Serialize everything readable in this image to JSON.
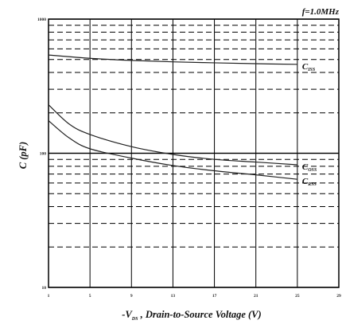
{
  "chart_data": {
    "type": "line",
    "frequency_label": "f=1.0MHz",
    "ylabel": "C (pF)",
    "xlabel": {
      "prefix": "-V",
      "sub": "DS",
      "suffix": " , Drain-to-Source Voltage (V)"
    },
    "xlim": [
      1,
      29
    ],
    "ylim": [
      10,
      1000
    ],
    "yscale": "log",
    "x_ticks": [
      "1",
      "5",
      "9",
      "13",
      "17",
      "21",
      "25",
      "29"
    ],
    "y_ticks": [
      "10",
      "100",
      "1000"
    ],
    "grid": true,
    "series": [
      {
        "name": "C_ISS",
        "label_main": "C",
        "label_sub": "ISS",
        "x": [
          1,
          5,
          9,
          13,
          17,
          21,
          25
        ],
        "values": [
          540,
          510,
          492,
          480,
          472,
          465,
          460
        ]
      },
      {
        "name": "C_OSS",
        "label_main": "C",
        "label_sub": "OSS",
        "x": [
          1,
          3,
          5,
          9,
          13,
          17,
          21,
          25
        ],
        "values": [
          230,
          165,
          138,
          112,
          98,
          90,
          86,
          82
        ]
      },
      {
        "name": "C_RSS",
        "label_main": "C",
        "label_sub": "RSS",
        "x": [
          1,
          3,
          5,
          9,
          13,
          17,
          21,
          25
        ],
        "values": [
          175,
          130,
          108,
          92,
          81,
          74,
          69,
          64
        ]
      }
    ]
  }
}
